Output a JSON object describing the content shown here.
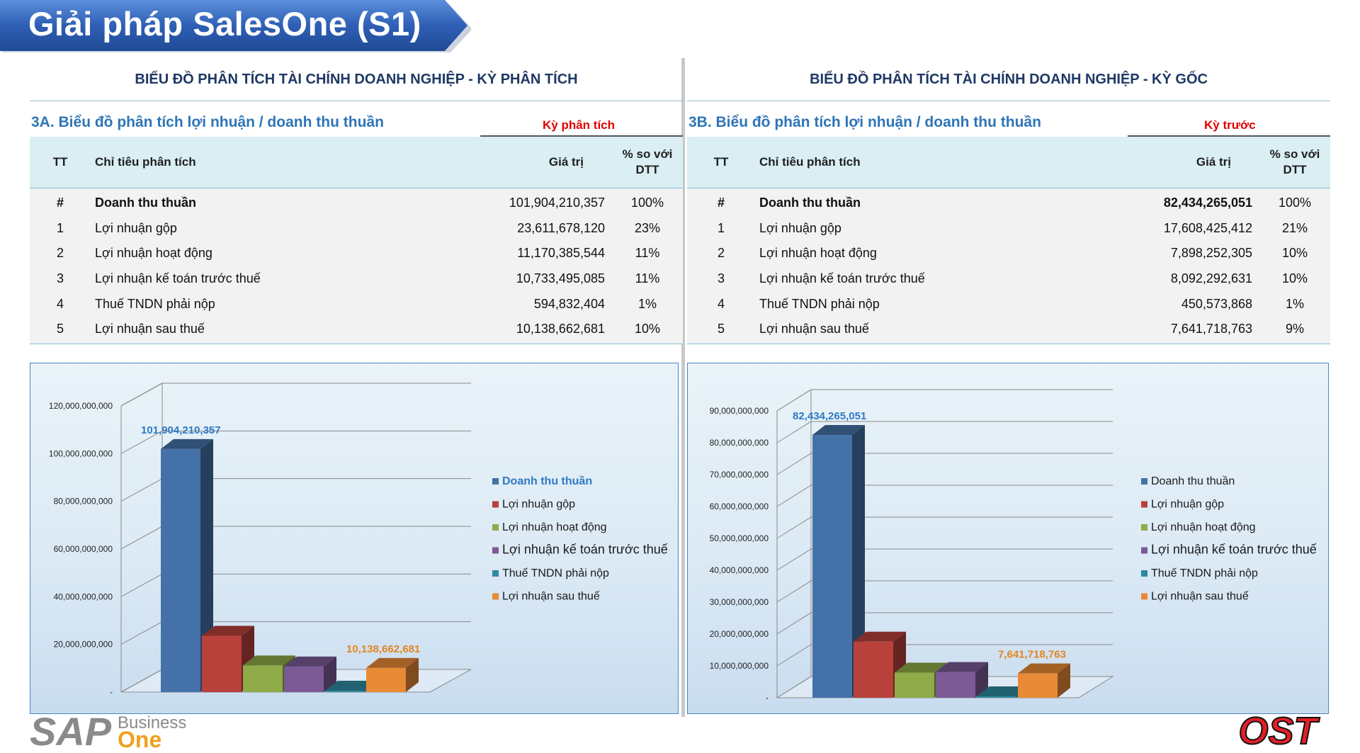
{
  "banner": {
    "title": "Giải pháp SalesOne (S1)"
  },
  "left": {
    "heading": "BIỂU ĐỒ PHÂN TÍCH TÀI CHÍNH DOANH NGHIỆP - KỲ PHÂN TÍCH",
    "section_title": "3A. Biểu đồ phân tích lợi nhuận / doanh thu thuần",
    "period_label": "Kỳ phân tích",
    "columns": {
      "tt": "TT",
      "name": "Chỉ tiêu phân tích",
      "value": "Giá trị",
      "pct_line1": "% so với",
      "pct_line2": "DTT"
    },
    "rows": [
      {
        "tt": "#",
        "name": "Doanh thu thuần",
        "value": "101,904,210,357",
        "pct": "100%"
      },
      {
        "tt": "1",
        "name": "Lợi nhuận gộp",
        "value": "23,611,678,120",
        "pct": "23%"
      },
      {
        "tt": "2",
        "name": "Lợi nhuận hoạt động",
        "value": "11,170,385,544",
        "pct": "11%"
      },
      {
        "tt": "3",
        "name": "Lợi nhuận kế toán trước thuế",
        "value": "10,733,495,085",
        "pct": "11%"
      },
      {
        "tt": "4",
        "name": "Thuế TNDN phải nộp",
        "value": "594,832,404",
        "pct": "1%"
      },
      {
        "tt": "5",
        "name": "Lợi nhuận sau thuế",
        "value": "10,138,662,681",
        "pct": "10%"
      }
    ]
  },
  "right": {
    "heading": "BIỂU ĐỒ PHÂN TÍCH TÀI CHÍNH DOANH NGHIỆP - KỲ GỐC",
    "section_title": "3B. Biểu đồ phân tích lợi nhuận / doanh thu thuần",
    "period_label": "Kỳ trước",
    "columns": {
      "tt": "TT",
      "name": "Chỉ tiêu phân tích",
      "value": "Giá trị",
      "pct_line1": "% so với",
      "pct_line2": "DTT"
    },
    "rows": [
      {
        "tt": "#",
        "name": "Doanh thu thuần",
        "value": "82,434,265,051",
        "pct": "100%"
      },
      {
        "tt": "1",
        "name": "Lợi nhuận gộp",
        "value": "17,608,425,412",
        "pct": "21%"
      },
      {
        "tt": "2",
        "name": "Lợi nhuận hoạt động",
        "value": "7,898,252,305",
        "pct": "10%"
      },
      {
        "tt": "3",
        "name": "Lợi nhuận kế toán trước thuế",
        "value": "8,092,292,631",
        "pct": "10%"
      },
      {
        "tt": "4",
        "name": "Thuế TNDN phải nộp",
        "value": "450,573,868",
        "pct": "1%"
      },
      {
        "tt": "5",
        "name": "Lợi nhuận sau thuế",
        "value": "7,641,718,763",
        "pct": "9%"
      }
    ]
  },
  "colors": {
    "banner": "#2f5fb5",
    "series": [
      "#4472a8",
      "#b8413c",
      "#8fab4a",
      "#7b5a96",
      "#2f8aa0",
      "#e98a36"
    ],
    "heading": "#1f3864",
    "section_title": "#2e75b6",
    "period_label": "#e00000",
    "table_header_bg": "#daeef3",
    "chart_label_first": "#2f79c4",
    "chart_label_last": "#e2861e"
  },
  "chart_data": [
    {
      "type": "bar",
      "style": "3d-column",
      "categories": [
        "Doanh thu thuần",
        "Lợi nhuận gộp",
        "Lợi nhuận hoạt động",
        "Lợi nhuận kế toán trước thuế",
        "Thuế TNDN phải nộp",
        "Lợi nhuận sau thuế"
      ],
      "values": [
        101904210357,
        23611678120,
        11170385544,
        10733495085,
        594832404,
        10138662681
      ],
      "data_labels": [
        "101,904,210,357",
        "",
        "",
        "",
        "",
        "10,138,662,681"
      ],
      "ylim": [
        0,
        120000000000
      ],
      "yticks": [
        "-",
        "20,000,000,000",
        "40,000,000,000",
        "60,000,000,000",
        "80,000,000,000",
        "100,000,000,000",
        "120,000,000,000"
      ],
      "legend": [
        "Doanh thu thuần",
        "Lợi nhuận gộp",
        "Lợi nhuận hoạt động",
        "Lợi nhuận kế toán trước thuế",
        "Thuế TNDN phải nộp",
        "Lợi nhuận sau thuế"
      ],
      "legend_position": "right",
      "grid": true
    },
    {
      "type": "bar",
      "style": "3d-column",
      "categories": [
        "Doanh thu thuần",
        "Lợi nhuận gộp",
        "Lợi nhuận hoạt động",
        "Lợi nhuận kế toán trước thuế",
        "Thuế TNDN phải nộp",
        "Lợi nhuận sau thuế"
      ],
      "values": [
        82434265051,
        17608425412,
        7898252305,
        8092292631,
        450573868,
        7641718763
      ],
      "data_labels": [
        "82,434,265,051",
        "",
        "",
        "",
        "",
        "7,641,718,763"
      ],
      "ylim": [
        0,
        90000000000
      ],
      "yticks": [
        "-",
        "10,000,000,000",
        "20,000,000,000",
        "30,000,000,000",
        "40,000,000,000",
        "50,000,000,000",
        "60,000,000,000",
        "70,000,000,000",
        "80,000,000,000",
        "90,000,000,000"
      ],
      "legend": [
        "Doanh thu thuần",
        "Lợi nhuận gộp",
        "Lợi nhuận hoạt động",
        "Lợi nhuận kế toán trước thuế",
        "Thuế TNDN phải nộp",
        "Lợi nhuận sau thuế"
      ],
      "legend_position": "right",
      "grid": true
    }
  ],
  "logos": {
    "sap": {
      "main": "SAP",
      "line1": "Business",
      "line2": "One"
    },
    "ost": "OST"
  }
}
